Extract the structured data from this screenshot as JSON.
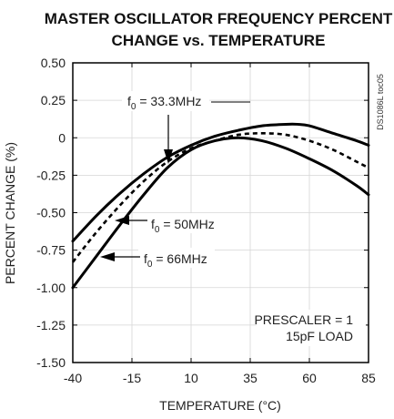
{
  "chart_data": {
    "type": "line",
    "title_line1": "MASTER OSCILLATOR FREQUENCY PERCENT",
    "title_line2": "CHANGE vs. TEMPERATURE",
    "xlabel": "TEMPERATURE (°C)",
    "ylabel": "PERCENT CHANGE (%)",
    "xlim": [
      -40,
      85
    ],
    "ylim": [
      -1.5,
      0.5
    ],
    "x_ticks": [
      "-40",
      "-15",
      "10",
      "35",
      "60",
      "85"
    ],
    "y_ticks": [
      "0.50",
      "0.25",
      "0",
      "-0.25",
      "-0.50",
      "-0.75",
      "-1.00",
      "-1.25",
      "-1.50"
    ],
    "grid": true,
    "series": [
      {
        "name": "f0 = 33.3MHz",
        "style": "solid",
        "points": [
          [
            -40,
            -0.69
          ],
          [
            -30,
            -0.52
          ],
          [
            -20,
            -0.37
          ],
          [
            -10,
            -0.24
          ],
          [
            0,
            -0.13
          ],
          [
            10,
            -0.05
          ],
          [
            20,
            0.01
          ],
          [
            30,
            0.05
          ],
          [
            40,
            0.08
          ],
          [
            50,
            0.09
          ],
          [
            55,
            0.09
          ],
          [
            60,
            0.08
          ],
          [
            70,
            0.03
          ],
          [
            80,
            -0.02
          ],
          [
            85,
            -0.05
          ]
        ]
      },
      {
        "name": "f0 = 50MHz",
        "style": "dashed",
        "points": [
          [
            -40,
            -0.83
          ],
          [
            -30,
            -0.63
          ],
          [
            -20,
            -0.45
          ],
          [
            -10,
            -0.29
          ],
          [
            0,
            -0.16
          ],
          [
            10,
            -0.07
          ],
          [
            20,
            -0.02
          ],
          [
            30,
            0.02
          ],
          [
            40,
            0.03
          ],
          [
            50,
            0.02
          ],
          [
            60,
            -0.02
          ],
          [
            70,
            -0.08
          ],
          [
            80,
            -0.16
          ],
          [
            85,
            -0.2
          ]
        ]
      },
      {
        "name": "f0 = 66MHz",
        "style": "solid",
        "points": [
          [
            -40,
            -1.0
          ],
          [
            -30,
            -0.79
          ],
          [
            -20,
            -0.58
          ],
          [
            -10,
            -0.38
          ],
          [
            0,
            -0.2
          ],
          [
            10,
            -0.08
          ],
          [
            20,
            -0.02
          ],
          [
            30,
            0.0
          ],
          [
            40,
            -0.02
          ],
          [
            50,
            -0.07
          ],
          [
            60,
            -0.14
          ],
          [
            70,
            -0.22
          ],
          [
            80,
            -0.32
          ],
          [
            85,
            -0.38
          ]
        ]
      }
    ],
    "annotations": {
      "f1_prefix": "f",
      "f1_sub": "0",
      "f1_value": " = 33.3MHz",
      "f2_prefix": "f",
      "f2_sub": "0",
      "f2_value": " = 50MHz",
      "f3_prefix": "f",
      "f3_sub": "0",
      "f3_value": " = 66MHz",
      "prescaler_line1": "PRESCALER = 1",
      "prescaler_line2": "15pF LOAD",
      "side_code": "DS1086L toc05"
    }
  }
}
